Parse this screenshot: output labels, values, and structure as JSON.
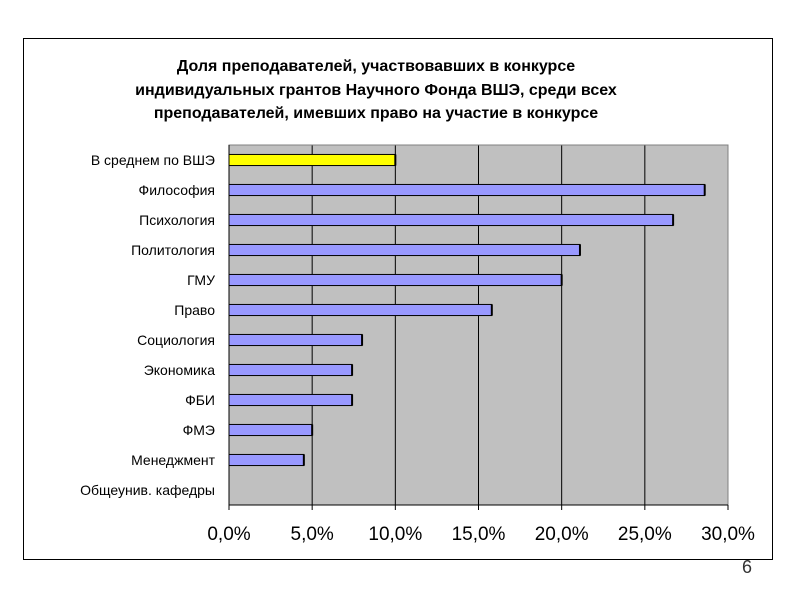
{
  "slide": {
    "page_number": "6"
  },
  "colors": {
    "plot_bg": "#c0c0c0",
    "bar_fill": "#9999ff",
    "highlight_fill": "#ffff00",
    "bar_stroke": "#000000",
    "grid": "#000000"
  },
  "chart_data": {
    "type": "bar",
    "orientation": "horizontal",
    "title_lines": [
      "Доля преподавателей, участвовавших в конкурсе",
      "индивидуальных грантов Научного Фонда ВШЭ, среди всех",
      "преподавателей, имевших право на участие в конкурсе"
    ],
    "categories": [
      "В среднем по ВШЭ",
      "Философия",
      "Психология",
      "Политология",
      "ГМУ",
      "Право",
      "Социология",
      "Экономика",
      "ФБИ",
      "ФМЭ",
      "Менеджмент",
      "Общеунив. кафедры"
    ],
    "values": [
      10.0,
      28.6,
      26.7,
      21.1,
      20.0,
      15.8,
      8.0,
      7.4,
      7.4,
      5.0,
      4.5,
      0.0
    ],
    "highlight_index": 0,
    "xlim": [
      0,
      30
    ],
    "xticks": [
      0,
      5,
      10,
      15,
      20,
      25,
      30
    ],
    "xtick_labels": [
      "0,0%",
      "5,0%",
      "10,0%",
      "15,0%",
      "20,0%",
      "25,0%",
      "30,0%"
    ],
    "grid": "vertical",
    "legend": "none"
  }
}
